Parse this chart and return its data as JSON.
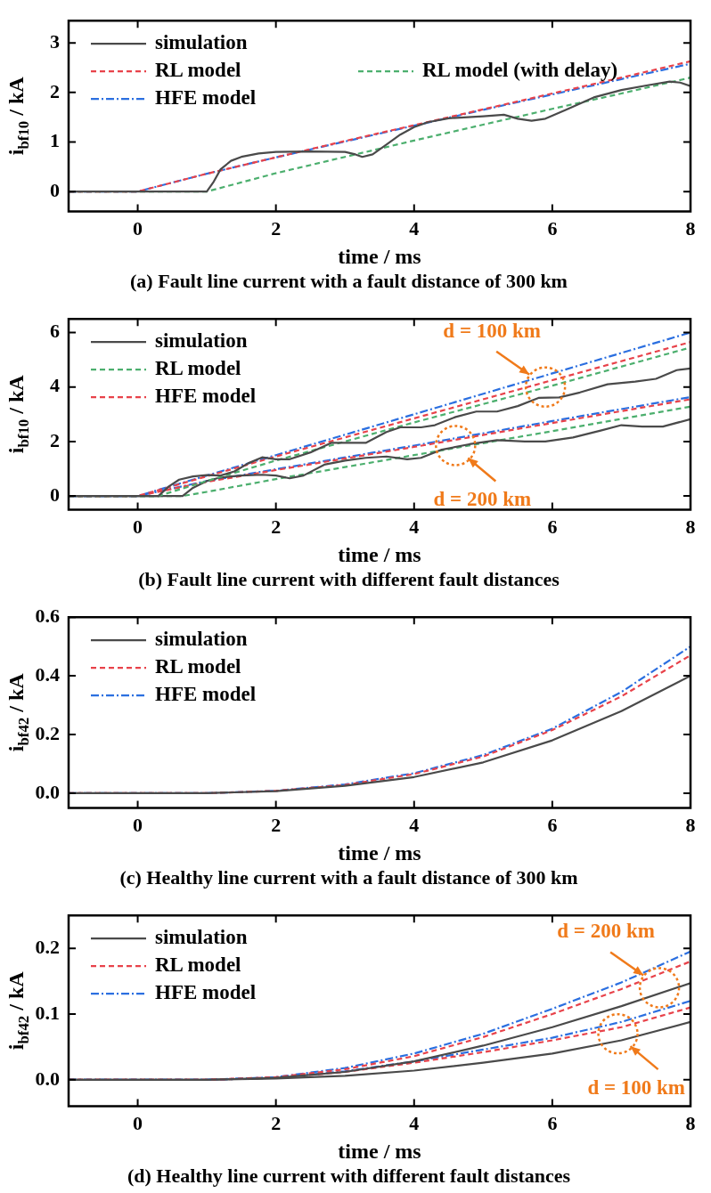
{
  "chart_data": [
    {
      "type": "line",
      "title": "(a) Fault line current with a fault distance of 300 km",
      "xlabel": "time / ms",
      "ylabel": "i$_{bf10}$ / kA",
      "xlim": [
        -1,
        8
      ],
      "xticks": [
        0,
        2,
        4,
        6,
        8
      ],
      "ylim": [
        -0.4,
        3.45
      ],
      "yticks": [
        0,
        1,
        2,
        3
      ],
      "grid": false,
      "legend": "top left",
      "marker": "none",
      "series": [
        {
          "name": "simulation",
          "color": "#4a4a4a",
          "line_style": "solid",
          "x": [
            -1,
            1.0,
            1.1,
            1.2,
            1.35,
            1.5,
            1.75,
            2,
            2.5,
            3.0,
            3.15,
            3.25,
            3.4,
            3.6,
            3.8,
            4.0,
            4.2,
            4.5,
            5.0,
            5.3,
            5.5,
            5.7,
            5.9,
            6.2,
            6.6,
            7.0,
            7.4,
            7.7,
            7.85,
            8
          ],
          "values": [
            0,
            0,
            0.2,
            0.45,
            0.62,
            0.7,
            0.77,
            0.8,
            0.81,
            0.8,
            0.75,
            0.7,
            0.75,
            0.95,
            1.15,
            1.3,
            1.4,
            1.48,
            1.52,
            1.55,
            1.47,
            1.43,
            1.47,
            1.65,
            1.9,
            2.05,
            2.15,
            2.22,
            2.2,
            2.13
          ]
        },
        {
          "name": "RL model",
          "color": "#e8424a",
          "line_style": "dashed",
          "x": [
            -1,
            0,
            1,
            2,
            3,
            4,
            5,
            6,
            7,
            8
          ],
          "values": [
            0,
            0,
            0.36,
            0.69,
            1.02,
            1.34,
            1.66,
            1.98,
            2.3,
            2.63
          ]
        },
        {
          "name": "HFE model",
          "color": "#2b6fe0",
          "line_style": "dashdot",
          "x": [
            -1,
            0,
            1,
            2,
            3,
            4,
            5,
            6,
            7,
            8
          ],
          "values": [
            0,
            0,
            0.36,
            0.69,
            1.01,
            1.33,
            1.65,
            1.96,
            2.27,
            2.58
          ]
        },
        {
          "name": "RL model (with delay)",
          "color": "#4caf6e",
          "line_style": "dashed",
          "x": [
            -1,
            1,
            2,
            3,
            4,
            5,
            6,
            7,
            8
          ],
          "values": [
            0,
            0,
            0.37,
            0.7,
            1.03,
            1.35,
            1.67,
            1.98,
            2.3
          ]
        }
      ]
    },
    {
      "type": "line",
      "title": "(b) Fault line current with different fault distances",
      "xlabel": "time / ms",
      "ylabel": "i$_{bf10}$ / kA",
      "xlim": [
        -1,
        8
      ],
      "xticks": [
        0,
        2,
        4,
        6,
        8
      ],
      "ylim": [
        -0.5,
        6.5
      ],
      "yticks": [
        0,
        2,
        4,
        6
      ],
      "grid": false,
      "legend": "top left",
      "marker": "none",
      "annotations": [
        {
          "text": "d = 100 km",
          "x": 5.9,
          "y": 4.0
        },
        {
          "text": "d = 200 km",
          "x": 4.6,
          "y": 1.85
        }
      ],
      "series": [
        {
          "name": "simulation",
          "color": "#4a4a4a",
          "line_style": "solid",
          "x": [
            -1,
            0.3,
            0.45,
            0.6,
            0.8,
            1.0,
            1.2,
            1.4,
            1.6,
            1.8,
            2.0,
            2.2,
            2.5,
            2.8,
            3.0,
            3.3,
            3.6,
            3.8,
            4.1,
            4.3,
            4.6,
            4.9,
            5.2,
            5.5,
            5.8,
            6.1,
            6.4,
            6.8,
            7.2,
            7.5,
            7.8,
            8
          ],
          "values": [
            0,
            0,
            0.35,
            0.6,
            0.72,
            0.77,
            0.75,
            0.9,
            1.2,
            1.42,
            1.35,
            1.35,
            1.6,
            1.95,
            1.95,
            1.95,
            2.35,
            2.52,
            2.52,
            2.6,
            2.9,
            3.1,
            3.1,
            3.3,
            3.6,
            3.62,
            3.8,
            4.1,
            4.2,
            4.3,
            4.62,
            4.68
          ]
        },
        {
          "name": "RL model",
          "color": "#4caf6e",
          "line_style": "dashed",
          "x": [
            -1,
            0.3,
            1,
            2,
            4,
            6,
            8
          ],
          "values": [
            0,
            0,
            0.55,
            1.3,
            2.7,
            4.05,
            5.45
          ]
        },
        {
          "name": "HFE model",
          "color": "#e8424a",
          "line_style": "dashed",
          "x": [
            -1,
            0,
            1,
            2,
            4,
            6,
            8
          ],
          "values": [
            0,
            0,
            0.72,
            1.45,
            2.85,
            4.25,
            5.65
          ]
        },
        {
          "color": "#2b6fe0",
          "line_style": "dashdot",
          "x": [
            -1,
            0,
            1,
            2,
            4,
            6,
            8
          ],
          "values": [
            0,
            0,
            0.75,
            1.5,
            3.0,
            4.5,
            6.0
          ]
        },
        {
          "color": "#4a4a4a",
          "line_style": "solid",
          "x": [
            -1,
            0.65,
            0.8,
            1.0,
            1.2,
            1.5,
            1.8,
            2.0,
            2.2,
            2.4,
            2.7,
            3.0,
            3.3,
            3.6,
            3.9,
            4.1,
            4.4,
            4.8,
            5.2,
            5.6,
            5.9,
            6.3,
            6.7,
            7.0,
            7.3,
            7.6,
            8
          ],
          "values": [
            0,
            0,
            0.3,
            0.55,
            0.68,
            0.75,
            0.78,
            0.75,
            0.65,
            0.75,
            1.15,
            1.3,
            1.4,
            1.45,
            1.35,
            1.4,
            1.7,
            1.9,
            2.05,
            2.0,
            2.0,
            2.15,
            2.4,
            2.6,
            2.55,
            2.55,
            2.82
          ]
        },
        {
          "color": "#4caf6e",
          "line_style": "dashed",
          "x": [
            -1,
            0.65,
            1,
            2,
            4,
            6,
            8
          ],
          "values": [
            0,
            0,
            0.15,
            0.62,
            1.5,
            2.38,
            3.28
          ]
        },
        {
          "color": "#e8424a",
          "line_style": "dashed",
          "x": [
            -1,
            0,
            1,
            2,
            4,
            6,
            8
          ],
          "values": [
            0,
            0,
            0.52,
            0.95,
            1.8,
            2.68,
            3.55
          ]
        },
        {
          "color": "#2b6fe0",
          "line_style": "dashdot",
          "x": [
            -1,
            0,
            1,
            2,
            4,
            6,
            8
          ],
          "values": [
            0,
            0,
            0.55,
            0.98,
            1.85,
            2.75,
            3.63
          ]
        }
      ]
    },
    {
      "type": "line",
      "title": "(c) Healthy line current with a fault distance of 300 km",
      "xlabel": "time / ms",
      "ylabel": "i$_{bf42}$ / kA",
      "xlim": [
        -1,
        8
      ],
      "xticks": [
        0,
        2,
        4,
        6,
        8
      ],
      "ylim": [
        -0.05,
        0.6
      ],
      "yticks": [
        {
          "value": 0,
          "label": "0.0"
        },
        0.2,
        0.4,
        0.6
      ],
      "grid": false,
      "legend": "top left",
      "marker": "none",
      "series": [
        {
          "name": "simulation",
          "color": "#4a4a4a",
          "line_style": "solid",
          "x": [
            -1,
            1,
            2,
            3,
            4,
            5,
            6,
            7,
            8
          ],
          "values": [
            0,
            0,
            0.007,
            0.025,
            0.055,
            0.105,
            0.18,
            0.28,
            0.4
          ]
        },
        {
          "name": "RL model",
          "color": "#e8424a",
          "line_style": "dashed",
          "x": [
            -1,
            1,
            2,
            3,
            4,
            5,
            6,
            7,
            8
          ],
          "values": [
            0,
            0,
            0.008,
            0.028,
            0.065,
            0.125,
            0.215,
            0.33,
            0.47
          ]
        },
        {
          "name": "HFE model",
          "color": "#2b6fe0",
          "line_style": "dashdot",
          "x": [
            -1,
            1,
            2,
            3,
            4,
            5,
            6,
            7,
            8
          ],
          "values": [
            0,
            0,
            0.008,
            0.03,
            0.068,
            0.13,
            0.22,
            0.345,
            0.5
          ]
        }
      ]
    },
    {
      "type": "line",
      "title": "(d) Healthy line current with different fault distances",
      "xlabel": "time / ms",
      "ylabel": "i$_{bf42}$ / kA",
      "xlim": [
        -1,
        8
      ],
      "xticks": [
        0,
        2,
        4,
        6,
        8
      ],
      "ylim": [
        -0.04,
        0.25
      ],
      "yticks": [
        {
          "value": 0,
          "label": "0.0"
        },
        0.1,
        0.2
      ],
      "grid": false,
      "legend": "top left",
      "marker": "none",
      "annotations": [
        {
          "text": "d = 200 km",
          "x": 7.55,
          "y": 0.14
        },
        {
          "text": "d = 100 km",
          "x": 6.95,
          "y": 0.07
        }
      ],
      "series": [
        {
          "name": "simulation",
          "color": "#4a4a4a",
          "line_style": "solid",
          "x": [
            -1,
            1,
            2,
            3,
            4,
            5,
            6,
            7,
            8
          ],
          "values": [
            0,
            0,
            0.003,
            0.012,
            0.028,
            0.052,
            0.08,
            0.112,
            0.147
          ]
        },
        {
          "name": "RL model",
          "color": "#e8424a",
          "line_style": "dashed",
          "x": [
            -1,
            1,
            2,
            3,
            4,
            5,
            6,
            7,
            8
          ],
          "values": [
            0,
            0,
            0.004,
            0.016,
            0.036,
            0.065,
            0.1,
            0.138,
            0.18
          ]
        },
        {
          "name": "HFE model",
          "color": "#2b6fe0",
          "line_style": "dashdot",
          "x": [
            -1,
            1,
            2,
            3,
            4,
            5,
            6,
            7,
            8
          ],
          "values": [
            0,
            0,
            0.004,
            0.018,
            0.04,
            0.07,
            0.108,
            0.148,
            0.195
          ]
        },
        {
          "color": "#4a4a4a",
          "line_style": "solid",
          "x": [
            -1,
            1,
            2,
            3,
            4,
            5,
            6,
            7,
            8
          ],
          "values": [
            0,
            0,
            0.002,
            0.006,
            0.014,
            0.026,
            0.04,
            0.06,
            0.088
          ]
        },
        {
          "color": "#e8424a",
          "line_style": "dashed",
          "x": [
            -1,
            1,
            2,
            3,
            4,
            5,
            6,
            7,
            8
          ],
          "values": [
            0,
            0,
            0.003,
            0.012,
            0.026,
            0.042,
            0.06,
            0.08,
            0.11
          ]
        },
        {
          "color": "#2b6fe0",
          "line_style": "dashdot",
          "x": [
            -1,
            1,
            2,
            3,
            4,
            5,
            6,
            7,
            8
          ],
          "values": [
            0,
            0,
            0.003,
            0.013,
            0.028,
            0.046,
            0.064,
            0.088,
            0.12
          ]
        }
      ]
    }
  ]
}
